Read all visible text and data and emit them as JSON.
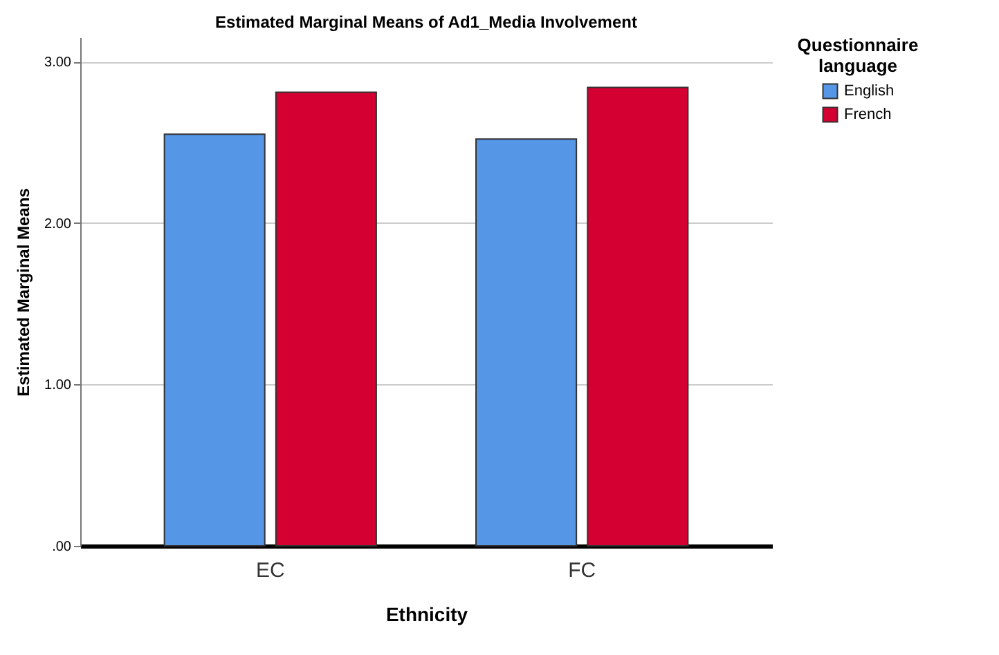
{
  "chart_data": {
    "type": "bar",
    "title": "Estimated Marginal Means of Ad1_Media Involvement",
    "xlabel": "Ethnicity",
    "ylabel": "Estimated Marginal Means",
    "legend_title": "Questionnaire language",
    "categories": [
      "EC",
      "FC"
    ],
    "series": [
      {
        "name": "English",
        "color": "#5596e6",
        "values": [
          2.55,
          2.52
        ]
      },
      {
        "name": "French",
        "color": "#d50032",
        "values": [
          2.81,
          2.84
        ]
      }
    ],
    "ylim": [
      0,
      3.15
    ],
    "yticks": [
      {
        "value": 0,
        "label": ".00"
      },
      {
        "value": 1,
        "label": "1.00"
      },
      {
        "value": 2,
        "label": "2.00"
      },
      {
        "value": 3,
        "label": "3.00"
      }
    ],
    "grid": "y",
    "legend": "top right"
  }
}
